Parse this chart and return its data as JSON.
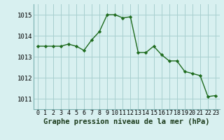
{
  "x": [
    0,
    1,
    2,
    3,
    4,
    5,
    6,
    7,
    8,
    9,
    10,
    11,
    12,
    13,
    14,
    15,
    16,
    17,
    18,
    19,
    20,
    21,
    22,
    23
  ],
  "y": [
    1013.5,
    1013.5,
    1013.5,
    1013.5,
    1013.6,
    1013.5,
    1013.3,
    1013.8,
    1014.2,
    1015.0,
    1015.0,
    1014.85,
    1014.9,
    1013.2,
    1013.2,
    1013.5,
    1013.1,
    1012.8,
    1012.8,
    1012.3,
    1012.2,
    1012.1,
    1011.1,
    1011.15
  ],
  "line_color": "#1e6b1e",
  "marker": "D",
  "marker_size": 2.2,
  "bg_color": "#d8f0f0",
  "grid_color": "#a8cece",
  "xlabel": "Graphe pression niveau de la mer (hPa)",
  "xlabel_fontsize": 7.5,
  "ylim": [
    1010.5,
    1015.5
  ],
  "xlim": [
    -0.5,
    23.5
  ],
  "yticks": [
    1011,
    1012,
    1013,
    1014,
    1015
  ],
  "xtick_labels": [
    "0",
    "1",
    "2",
    "3",
    "4",
    "5",
    "6",
    "7",
    "8",
    "9",
    "10",
    "11",
    "12",
    "13",
    "14",
    "15",
    "16",
    "17",
    "18",
    "19",
    "20",
    "21",
    "22",
    "23"
  ],
  "ytick_fontsize": 6.5,
  "xtick_fontsize": 6.0,
  "line_width": 1.0,
  "border_color": "#7ab0b0"
}
